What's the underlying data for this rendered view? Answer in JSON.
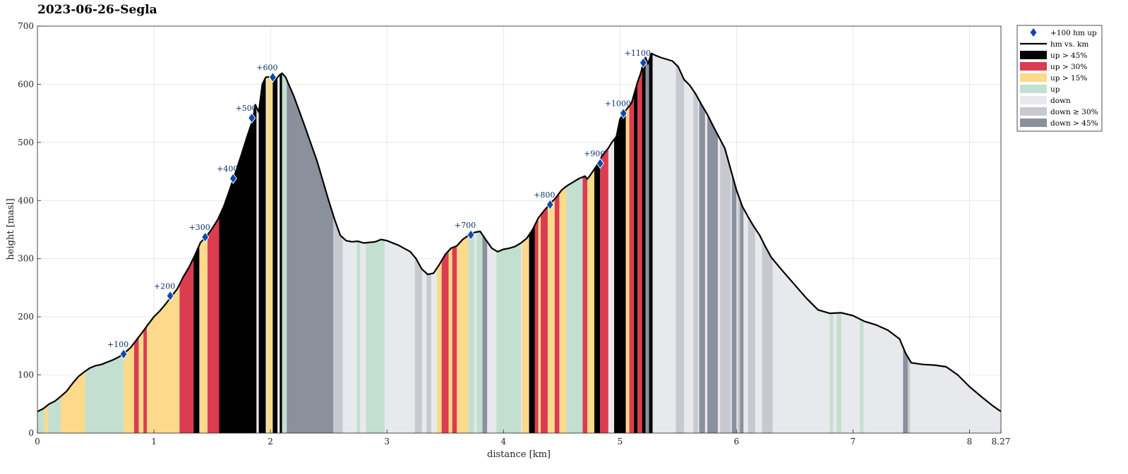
{
  "chart_data": {
    "type": "area",
    "title": "2023-06-26–Segla",
    "xlabel": "distance [km]",
    "ylabel": "height [masl]",
    "xlim": [
      0,
      8.27
    ],
    "ylim": [
      0,
      700
    ],
    "x_ticks": [
      0,
      1,
      2,
      3,
      4,
      5,
      6,
      7,
      8,
      8.27
    ],
    "x_tick_labels": [
      "0",
      "1",
      "2",
      "3",
      "4",
      "5",
      "6",
      "7",
      "8",
      "8.27"
    ],
    "y_ticks": [
      0,
      100,
      200,
      300,
      400,
      500,
      600,
      700
    ],
    "grid": true,
    "legend_position": "outside-top-right",
    "profile": [
      [
        0,
        37
      ],
      [
        0.05,
        42
      ],
      [
        0.1,
        50
      ],
      [
        0.15,
        55
      ],
      [
        0.2,
        63
      ],
      [
        0.25,
        72
      ],
      [
        0.3,
        85
      ],
      [
        0.35,
        97
      ],
      [
        0.4,
        105
      ],
      [
        0.45,
        112
      ],
      [
        0.5,
        116
      ],
      [
        0.55,
        118
      ],
      [
        0.6,
        122
      ],
      [
        0.65,
        126
      ],
      [
        0.7,
        131
      ],
      [
        0.75,
        138
      ],
      [
        0.8,
        147
      ],
      [
        0.85,
        160
      ],
      [
        0.9,
        173
      ],
      [
        0.95,
        187
      ],
      [
        1.0,
        200
      ],
      [
        1.05,
        210
      ],
      [
        1.1,
        222
      ],
      [
        1.15,
        235
      ],
      [
        1.2,
        248
      ],
      [
        1.25,
        268
      ],
      [
        1.3,
        285
      ],
      [
        1.35,
        305
      ],
      [
        1.4,
        328
      ],
      [
        1.45,
        338
      ],
      [
        1.5,
        352
      ],
      [
        1.55,
        368
      ],
      [
        1.6,
        390
      ],
      [
        1.65,
        418
      ],
      [
        1.7,
        448
      ],
      [
        1.75,
        478
      ],
      [
        1.8,
        510
      ],
      [
        1.85,
        540
      ],
      [
        1.87,
        565
      ],
      [
        1.9,
        552
      ],
      [
        1.93,
        600
      ],
      [
        1.96,
        612
      ],
      [
        2.0,
        613
      ],
      [
        2.03,
        605
      ],
      [
        2.08,
        616
      ],
      [
        2.1,
        619
      ],
      [
        2.13,
        612
      ],
      [
        2.2,
        580
      ],
      [
        2.3,
        525
      ],
      [
        2.4,
        468
      ],
      [
        2.5,
        400
      ],
      [
        2.55,
        368
      ],
      [
        2.6,
        340
      ],
      [
        2.65,
        331
      ],
      [
        2.7,
        329
      ],
      [
        2.75,
        330
      ],
      [
        2.8,
        327
      ],
      [
        2.9,
        329
      ],
      [
        2.95,
        333
      ],
      [
        3.0,
        331
      ],
      [
        3.1,
        323
      ],
      [
        3.2,
        312
      ],
      [
        3.25,
        300
      ],
      [
        3.3,
        282
      ],
      [
        3.35,
        273
      ],
      [
        3.4,
        275
      ],
      [
        3.45,
        290
      ],
      [
        3.5,
        307
      ],
      [
        3.55,
        318
      ],
      [
        3.6,
        322
      ],
      [
        3.65,
        333
      ],
      [
        3.7,
        340
      ],
      [
        3.75,
        345
      ],
      [
        3.8,
        347
      ],
      [
        3.85,
        332
      ],
      [
        3.9,
        318
      ],
      [
        3.95,
        312
      ],
      [
        4.0,
        316
      ],
      [
        4.05,
        318
      ],
      [
        4.1,
        321
      ],
      [
        4.15,
        327
      ],
      [
        4.2,
        335
      ],
      [
        4.25,
        350
      ],
      [
        4.3,
        370
      ],
      [
        4.35,
        383
      ],
      [
        4.4,
        394
      ],
      [
        4.45,
        405
      ],
      [
        4.5,
        418
      ],
      [
        4.55,
        426
      ],
      [
        4.6,
        432
      ],
      [
        4.65,
        438
      ],
      [
        4.7,
        442
      ],
      [
        4.72,
        437
      ],
      [
        4.75,
        445
      ],
      [
        4.8,
        460
      ],
      [
        4.85,
        478
      ],
      [
        4.9,
        490
      ],
      [
        4.93,
        500
      ],
      [
        4.97,
        510
      ],
      [
        5.0,
        540
      ],
      [
        5.05,
        555
      ],
      [
        5.1,
        568
      ],
      [
        5.15,
        603
      ],
      [
        5.18,
        620
      ],
      [
        5.2,
        637
      ],
      [
        5.22,
        646
      ],
      [
        5.24,
        635
      ],
      [
        5.27,
        653
      ],
      [
        5.3,
        650
      ],
      [
        5.35,
        646
      ],
      [
        5.4,
        643
      ],
      [
        5.45,
        640
      ],
      [
        5.5,
        630
      ],
      [
        5.55,
        608
      ],
      [
        5.6,
        598
      ],
      [
        5.65,
        583
      ],
      [
        5.7,
        565
      ],
      [
        5.75,
        548
      ],
      [
        5.8,
        528
      ],
      [
        5.9,
        490
      ],
      [
        6.0,
        418
      ],
      [
        6.05,
        390
      ],
      [
        6.1,
        372
      ],
      [
        6.15,
        355
      ],
      [
        6.2,
        340
      ],
      [
        6.25,
        320
      ],
      [
        6.3,
        302
      ],
      [
        6.4,
        278
      ],
      [
        6.5,
        255
      ],
      [
        6.6,
        232
      ],
      [
        6.7,
        212
      ],
      [
        6.8,
        206
      ],
      [
        6.9,
        207
      ],
      [
        7.0,
        202
      ],
      [
        7.1,
        192
      ],
      [
        7.2,
        186
      ],
      [
        7.3,
        177
      ],
      [
        7.4,
        162
      ],
      [
        7.45,
        138
      ],
      [
        7.5,
        121
      ],
      [
        7.6,
        118
      ],
      [
        7.7,
        117
      ],
      [
        7.8,
        114
      ],
      [
        7.9,
        100
      ],
      [
        8.0,
        80
      ],
      [
        8.1,
        63
      ],
      [
        8.2,
        47
      ],
      [
        8.27,
        37
      ]
    ],
    "bands": [
      {
        "c": "up",
        "s": 0,
        "e": 0.06
      },
      {
        "c": "up15",
        "s": 0.06,
        "e": 0.09
      },
      {
        "c": "up",
        "s": 0.09,
        "e": 0.2
      },
      {
        "c": "up15",
        "s": 0.2,
        "e": 0.23
      },
      {
        "c": "up15",
        "s": 0.23,
        "e": 0.41
      },
      {
        "c": "up",
        "s": 0.41,
        "e": 0.74
      },
      {
        "c": "up15",
        "s": 0.74,
        "e": 0.83
      },
      {
        "c": "up30",
        "s": 0.83,
        "e": 0.87
      },
      {
        "c": "up15",
        "s": 0.87,
        "e": 0.91
      },
      {
        "c": "up30",
        "s": 0.91,
        "e": 0.94
      },
      {
        "c": "up15",
        "s": 0.94,
        "e": 1.22
      },
      {
        "c": "up30",
        "s": 1.22,
        "e": 1.34
      },
      {
        "c": "up45",
        "s": 1.34,
        "e": 1.39
      },
      {
        "c": "up15",
        "s": 1.39,
        "e": 1.46
      },
      {
        "c": "up30",
        "s": 1.46,
        "e": 1.56
      },
      {
        "c": "up45",
        "s": 1.56,
        "e": 1.88
      },
      {
        "c": "up45",
        "s": 1.9,
        "e": 1.96
      },
      {
        "c": "up15",
        "s": 1.97,
        "e": 2.02
      },
      {
        "c": "up45",
        "s": 2.02,
        "e": 2.06
      },
      {
        "c": "up45",
        "s": 2.08,
        "e": 2.1
      },
      {
        "c": "up",
        "s": 2.1,
        "e": 2.14
      },
      {
        "c": "down45",
        "s": 2.14,
        "e": 2.54
      },
      {
        "c": "down30",
        "s": 2.54,
        "e": 2.62
      },
      {
        "c": "up",
        "s": 2.74,
        "e": 2.77
      },
      {
        "c": "up",
        "s": 2.82,
        "e": 2.98
      },
      {
        "c": "down30",
        "s": 3.24,
        "e": 3.3
      },
      {
        "c": "down30",
        "s": 3.34,
        "e": 3.38
      },
      {
        "c": "up15",
        "s": 3.43,
        "e": 3.47
      },
      {
        "c": "up30",
        "s": 3.47,
        "e": 3.53
      },
      {
        "c": "up15",
        "s": 3.53,
        "e": 3.56
      },
      {
        "c": "up30",
        "s": 3.56,
        "e": 3.6
      },
      {
        "c": "up15",
        "s": 3.6,
        "e": 3.7
      },
      {
        "c": "up",
        "s": 3.7,
        "e": 3.75
      },
      {
        "c": "up",
        "s": 3.77,
        "e": 3.82
      },
      {
        "c": "down45",
        "s": 3.82,
        "e": 3.86
      },
      {
        "c": "up",
        "s": 3.94,
        "e": 4.15
      },
      {
        "c": "up15",
        "s": 4.16,
        "e": 4.22
      },
      {
        "c": "up45",
        "s": 4.22,
        "e": 4.27
      },
      {
        "c": "up30",
        "s": 4.27,
        "e": 4.3
      },
      {
        "c": "up15",
        "s": 4.3,
        "e": 4.32
      },
      {
        "c": "up30",
        "s": 4.32,
        "e": 4.38
      },
      {
        "c": "up15",
        "s": 4.38,
        "e": 4.44
      },
      {
        "c": "up30",
        "s": 4.44,
        "e": 4.48
      },
      {
        "c": "up15",
        "s": 4.48,
        "e": 4.54
      },
      {
        "c": "up",
        "s": 4.54,
        "e": 4.68
      },
      {
        "c": "up30",
        "s": 4.68,
        "e": 4.72
      },
      {
        "c": "up15",
        "s": 4.72,
        "e": 4.78
      },
      {
        "c": "up45",
        "s": 4.78,
        "e": 4.83
      },
      {
        "c": "up30",
        "s": 4.83,
        "e": 4.9
      },
      {
        "c": "up45",
        "s": 4.95,
        "e": 5.05
      },
      {
        "c": "up15",
        "s": 5.05,
        "e": 5.08
      },
      {
        "c": "up30",
        "s": 5.08,
        "e": 5.12
      },
      {
        "c": "up45",
        "s": 5.12,
        "e": 5.15
      },
      {
        "c": "up30",
        "s": 5.15,
        "e": 5.19
      },
      {
        "c": "up45",
        "s": 5.19,
        "e": 5.22
      },
      {
        "c": "down45",
        "s": 5.22,
        "e": 5.25
      },
      {
        "c": "up45",
        "s": 5.25,
        "e": 5.28
      },
      {
        "c": "down30",
        "s": 5.48,
        "e": 5.55
      },
      {
        "c": "down30",
        "s": 5.63,
        "e": 5.67
      },
      {
        "c": "down45",
        "s": 5.68,
        "e": 5.73
      },
      {
        "c": "down45",
        "s": 5.75,
        "e": 5.84
      },
      {
        "c": "down30",
        "s": 5.86,
        "e": 5.95
      },
      {
        "c": "down45",
        "s": 5.96,
        "e": 6.0
      },
      {
        "c": "down30",
        "s": 6.01,
        "e": 6.03
      },
      {
        "c": "down45",
        "s": 6.03,
        "e": 6.06
      },
      {
        "c": "down30",
        "s": 6.1,
        "e": 6.16
      },
      {
        "c": "down30",
        "s": 6.22,
        "e": 6.31
      },
      {
        "c": "up",
        "s": 6.8,
        "e": 6.83
      },
      {
        "c": "up",
        "s": 6.86,
        "e": 6.9
      },
      {
        "c": "up",
        "s": 7.06,
        "e": 7.09
      },
      {
        "c": "down45",
        "s": 7.43,
        "e": 7.47
      },
      {
        "c": "down30",
        "s": 7.47,
        "e": 7.49
      }
    ],
    "markers": [
      {
        "x": 0.74,
        "y": 136,
        "label": "+100"
      },
      {
        "x": 1.14,
        "y": 236,
        "label": "+200"
      },
      {
        "x": 1.44,
        "y": 337,
        "label": "+300"
      },
      {
        "x": 1.68,
        "y": 438,
        "label": "+400"
      },
      {
        "x": 1.84,
        "y": 542,
        "label": "+500"
      },
      {
        "x": 2.02,
        "y": 612,
        "label": "+600"
      },
      {
        "x": 3.72,
        "y": 341,
        "label": "+700"
      },
      {
        "x": 4.4,
        "y": 393,
        "label": "+800"
      },
      {
        "x": 4.83,
        "y": 464,
        "label": "+900"
      },
      {
        "x": 5.03,
        "y": 550,
        "label": "+1000"
      },
      {
        "x": 5.2,
        "y": 637,
        "label": "+1100"
      }
    ],
    "legend": [
      {
        "key": "marker",
        "label": "+100 hm up"
      },
      {
        "key": "line",
        "label": "hm vs. km"
      },
      {
        "key": "up45",
        "label": "up > 45%"
      },
      {
        "key": "up30",
        "label": "up > 30%"
      },
      {
        "key": "up15",
        "label": "up > 15%"
      },
      {
        "key": "up",
        "label": "up"
      },
      {
        "key": "down",
        "label": "down"
      },
      {
        "key": "down30",
        "label": "down ≥ 30%"
      },
      {
        "key": "down45",
        "label": "down > 45%"
      }
    ],
    "colors": {
      "up45": "#000000",
      "up30": "#dc3c50",
      "up15": "#fdd98b",
      "up": "#c3dfd0",
      "down": "#e8e9ed",
      "down30": "#c7c8d0",
      "down45": "#8b909d",
      "line": "#000000",
      "marker": "#0a4ab0",
      "grid": "#dddddd"
    }
  }
}
